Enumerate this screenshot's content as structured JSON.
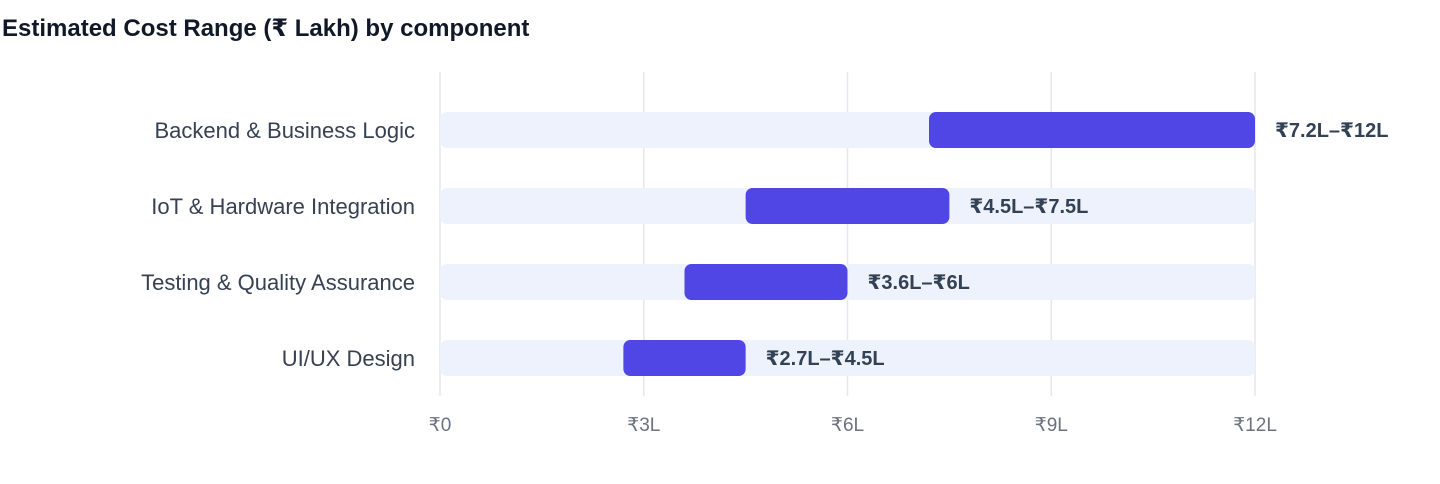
{
  "chart_data": {
    "type": "bar",
    "subtype": "floating-range-horizontal",
    "title": "Estimated Cost Range (₹ Lakh) by component",
    "xlabel": "",
    "ylabel": "",
    "xlim": [
      0,
      12
    ],
    "grid": true,
    "legend": "none",
    "categories": [
      "Backend & Business Logic",
      "IoT & Hardware Integration",
      "Testing & Quality Assurance",
      "UI/UX Design"
    ],
    "ranges": [
      {
        "low": 7.2,
        "high": 12,
        "label": "₹7.2L–₹12L"
      },
      {
        "low": 4.5,
        "high": 7.5,
        "label": "₹4.5L–₹7.5L"
      },
      {
        "low": 3.6,
        "high": 6,
        "label": "₹3.6L–₹6L"
      },
      {
        "low": 2.7,
        "high": 4.5,
        "label": "₹2.7L–₹4.5L"
      }
    ],
    "ticks": [
      {
        "value": 0,
        "label": "₹0"
      },
      {
        "value": 3,
        "label": "₹3L"
      },
      {
        "value": 6,
        "label": "₹6L"
      },
      {
        "value": 9,
        "label": "₹9L"
      },
      {
        "value": 12,
        "label": "₹12L"
      }
    ],
    "colors": {
      "range_bar": "#4f46e5",
      "track": "#eef2fc",
      "grid": "#e5e7eb",
      "title": "#111827",
      "category_text": "#374151",
      "tick_text": "#6b7280",
      "value_text": "#334155"
    }
  }
}
